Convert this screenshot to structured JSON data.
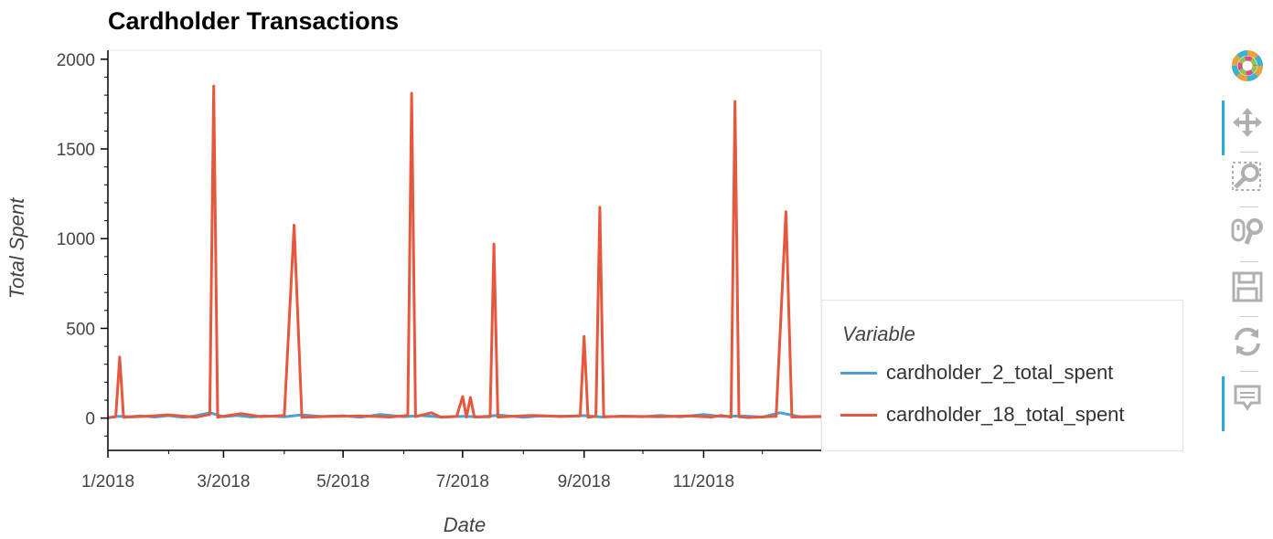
{
  "chart_data": {
    "type": "line",
    "title": "Cardholder Transactions",
    "xlabel": "Date",
    "ylabel": "Total Spent",
    "x_range": [
      "2018-01-01",
      "2018-12-31"
    ],
    "x_ticks": [
      "1/2018",
      "3/2018",
      "5/2018",
      "7/2018",
      "9/2018",
      "11/2018"
    ],
    "ylim": [
      -180,
      2050
    ],
    "y_ticks": [
      0,
      500,
      1000,
      1500,
      2000
    ],
    "grid": false,
    "legend_title": "Variable",
    "legend_placement": "right-outside",
    "series": [
      {
        "name": "cardholder_2_total_spent",
        "color": "#4c9fd9",
        "points": [
          [
            "2018-01-01",
            2
          ],
          [
            "2018-01-06",
            10
          ],
          [
            "2018-01-12",
            8
          ],
          [
            "2018-01-18",
            12
          ],
          [
            "2018-01-25",
            6
          ],
          [
            "2018-02-01",
            14
          ],
          [
            "2018-02-08",
            5
          ],
          [
            "2018-02-14",
            11
          ],
          [
            "2018-02-22",
            30
          ],
          [
            "2018-03-01",
            8
          ],
          [
            "2018-03-08",
            15
          ],
          [
            "2018-03-15",
            6
          ],
          [
            "2018-03-22",
            12
          ],
          [
            "2018-04-01",
            7
          ],
          [
            "2018-04-10",
            18
          ],
          [
            "2018-04-20",
            9
          ],
          [
            "2018-05-01",
            13
          ],
          [
            "2018-05-10",
            5
          ],
          [
            "2018-05-20",
            20
          ],
          [
            "2018-06-01",
            8
          ],
          [
            "2018-06-10",
            14
          ],
          [
            "2018-06-20",
            6
          ],
          [
            "2018-07-01",
            10
          ],
          [
            "2018-07-10",
            7
          ],
          [
            "2018-07-20",
            16
          ],
          [
            "2018-08-01",
            5
          ],
          [
            "2018-08-10",
            12
          ],
          [
            "2018-08-20",
            9
          ],
          [
            "2018-09-01",
            14
          ],
          [
            "2018-09-10",
            6
          ],
          [
            "2018-09-20",
            11
          ],
          [
            "2018-10-01",
            8
          ],
          [
            "2018-10-10",
            15
          ],
          [
            "2018-10-20",
            7
          ],
          [
            "2018-11-01",
            20
          ],
          [
            "2018-11-10",
            9
          ],
          [
            "2018-11-20",
            12
          ],
          [
            "2018-12-01",
            6
          ],
          [
            "2018-12-10",
            30
          ],
          [
            "2018-12-20",
            8
          ],
          [
            "2018-12-31",
            10
          ]
        ]
      },
      {
        "name": "cardholder_18_total_spent",
        "color": "#e5583e",
        "points": [
          [
            "2018-01-01",
            2
          ],
          [
            "2018-01-05",
            8
          ],
          [
            "2018-01-07",
            340
          ],
          [
            "2018-01-09",
            5
          ],
          [
            "2018-01-20",
            10
          ],
          [
            "2018-02-01",
            18
          ],
          [
            "2018-02-15",
            5
          ],
          [
            "2018-02-22",
            20
          ],
          [
            "2018-02-24",
            1850
          ],
          [
            "2018-02-26",
            5
          ],
          [
            "2018-03-10",
            25
          ],
          [
            "2018-03-20",
            8
          ],
          [
            "2018-04-01",
            15
          ],
          [
            "2018-04-06",
            1075
          ],
          [
            "2018-04-10",
            5
          ],
          [
            "2018-04-25",
            10
          ],
          [
            "2018-05-10",
            12
          ],
          [
            "2018-05-25",
            6
          ],
          [
            "2018-06-03",
            15
          ],
          [
            "2018-06-05",
            1810
          ],
          [
            "2018-06-07",
            8
          ],
          [
            "2018-06-15",
            30
          ],
          [
            "2018-06-20",
            5
          ],
          [
            "2018-06-28",
            10
          ],
          [
            "2018-07-01",
            120
          ],
          [
            "2018-07-03",
            5
          ],
          [
            "2018-07-05",
            115
          ],
          [
            "2018-07-07",
            6
          ],
          [
            "2018-07-15",
            8
          ],
          [
            "2018-07-17",
            970
          ],
          [
            "2018-07-19",
            6
          ],
          [
            "2018-08-05",
            15
          ],
          [
            "2018-08-20",
            10
          ],
          [
            "2018-08-30",
            12
          ],
          [
            "2018-09-01",
            455
          ],
          [
            "2018-09-03",
            5
          ],
          [
            "2018-09-07",
            10
          ],
          [
            "2018-09-09",
            1175
          ],
          [
            "2018-09-11",
            8
          ],
          [
            "2018-09-25",
            10
          ],
          [
            "2018-10-10",
            8
          ],
          [
            "2018-10-25",
            12
          ],
          [
            "2018-11-05",
            6
          ],
          [
            "2018-11-10",
            15
          ],
          [
            "2018-11-15",
            5
          ],
          [
            "2018-11-17",
            1765
          ],
          [
            "2018-11-19",
            8
          ],
          [
            "2018-11-24",
            3
          ],
          [
            "2018-11-26",
            5
          ],
          [
            "2018-12-08",
            10
          ],
          [
            "2018-12-13",
            1150
          ],
          [
            "2018-12-16",
            6
          ],
          [
            "2018-12-31",
            8
          ]
        ]
      }
    ]
  },
  "toolbar": {
    "tools": [
      "bokeh-logo",
      "pan-tool",
      "box-zoom-tool",
      "wheel-zoom-tool",
      "save-tool",
      "reset-tool",
      "hover-tool"
    ]
  }
}
